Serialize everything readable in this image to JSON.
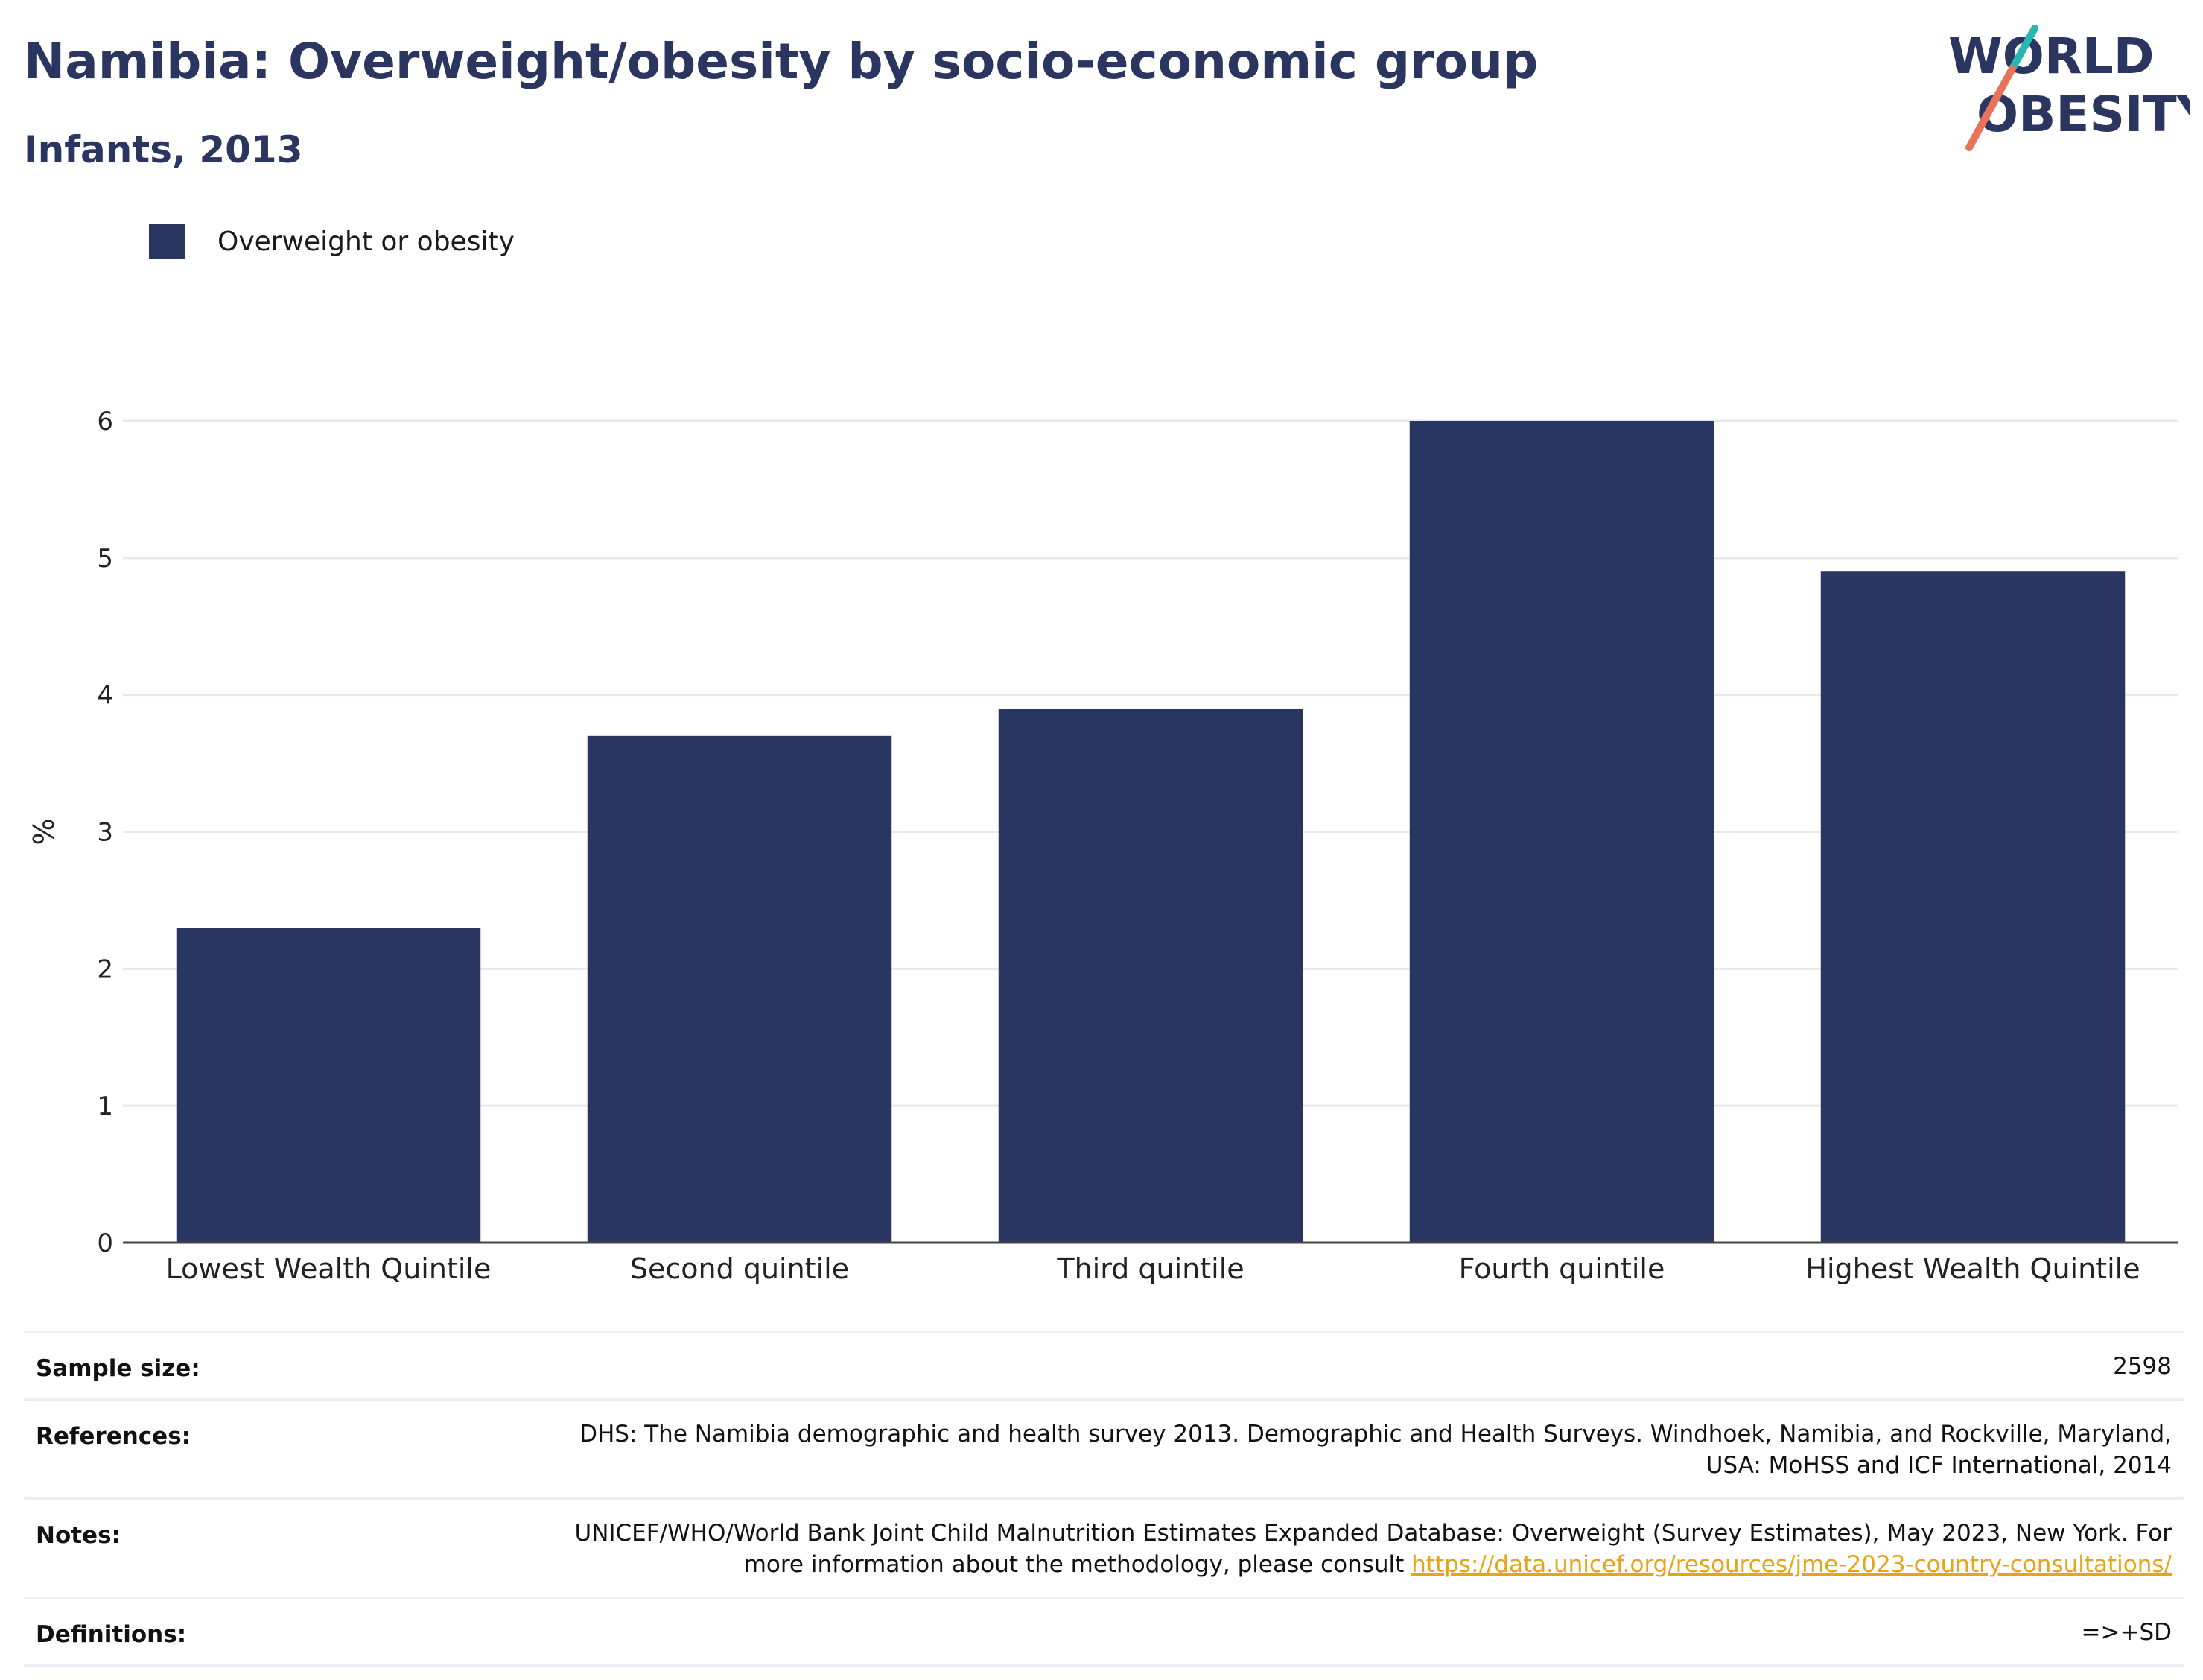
{
  "header": {
    "title": "Namibia: Overweight/obesity by socio-economic group",
    "subtitle": "Infants, 2013"
  },
  "logo": {
    "line1": "WORLD",
    "line2": "OBESITY",
    "colors": {
      "text": "#2a3560",
      "slash_top": "#2bb5b0",
      "slash_bottom": "#e8735a"
    }
  },
  "legend": {
    "label": "Overweight or obesity",
    "color": "#2a3662"
  },
  "chart_data": {
    "type": "bar",
    "categories": [
      "Lowest Wealth Quintile",
      "Second quintile",
      "Third quintile",
      "Fourth quintile",
      "Highest Wealth Quintile"
    ],
    "series": [
      {
        "name": "Overweight or obesity",
        "values": [
          2.3,
          3.7,
          3.9,
          6.0,
          4.9
        ],
        "color": "#2a3662"
      }
    ],
    "title": "Namibia: Overweight/obesity by socio-economic group",
    "subtitle": "Infants, 2013",
    "xlabel": "",
    "ylabel": "%",
    "ylim": [
      0,
      6.5
    ],
    "yticks": [
      0,
      1,
      2,
      3,
      4,
      5,
      6
    ],
    "grid": true,
    "legend_position": "top-left",
    "grid_color": "#e6e8ee",
    "axis_color": "#444444"
  },
  "info": {
    "sample_size_label": "Sample size:",
    "sample_size_value": "2598",
    "references_label": "References:",
    "references_value": "DHS: The Namibia demographic and health survey 2013. Demographic and Health Surveys. Windhoek, Namibia, and Rockville, Maryland, USA: MoHSS and ICF International, 2014",
    "notes_label": "Notes:",
    "notes_value": "UNICEF/WHO/World Bank Joint Child Malnutrition Estimates Expanded Database: Overweight (Survey Estimates), May 2023, New York. For more information about the methodology, please consult",
    "notes_link": "https://data.unicef.org/resources/jme-2023-country-consultations/",
    "definitions_label": "Definitions:",
    "definitions_value": "=>+SD"
  }
}
